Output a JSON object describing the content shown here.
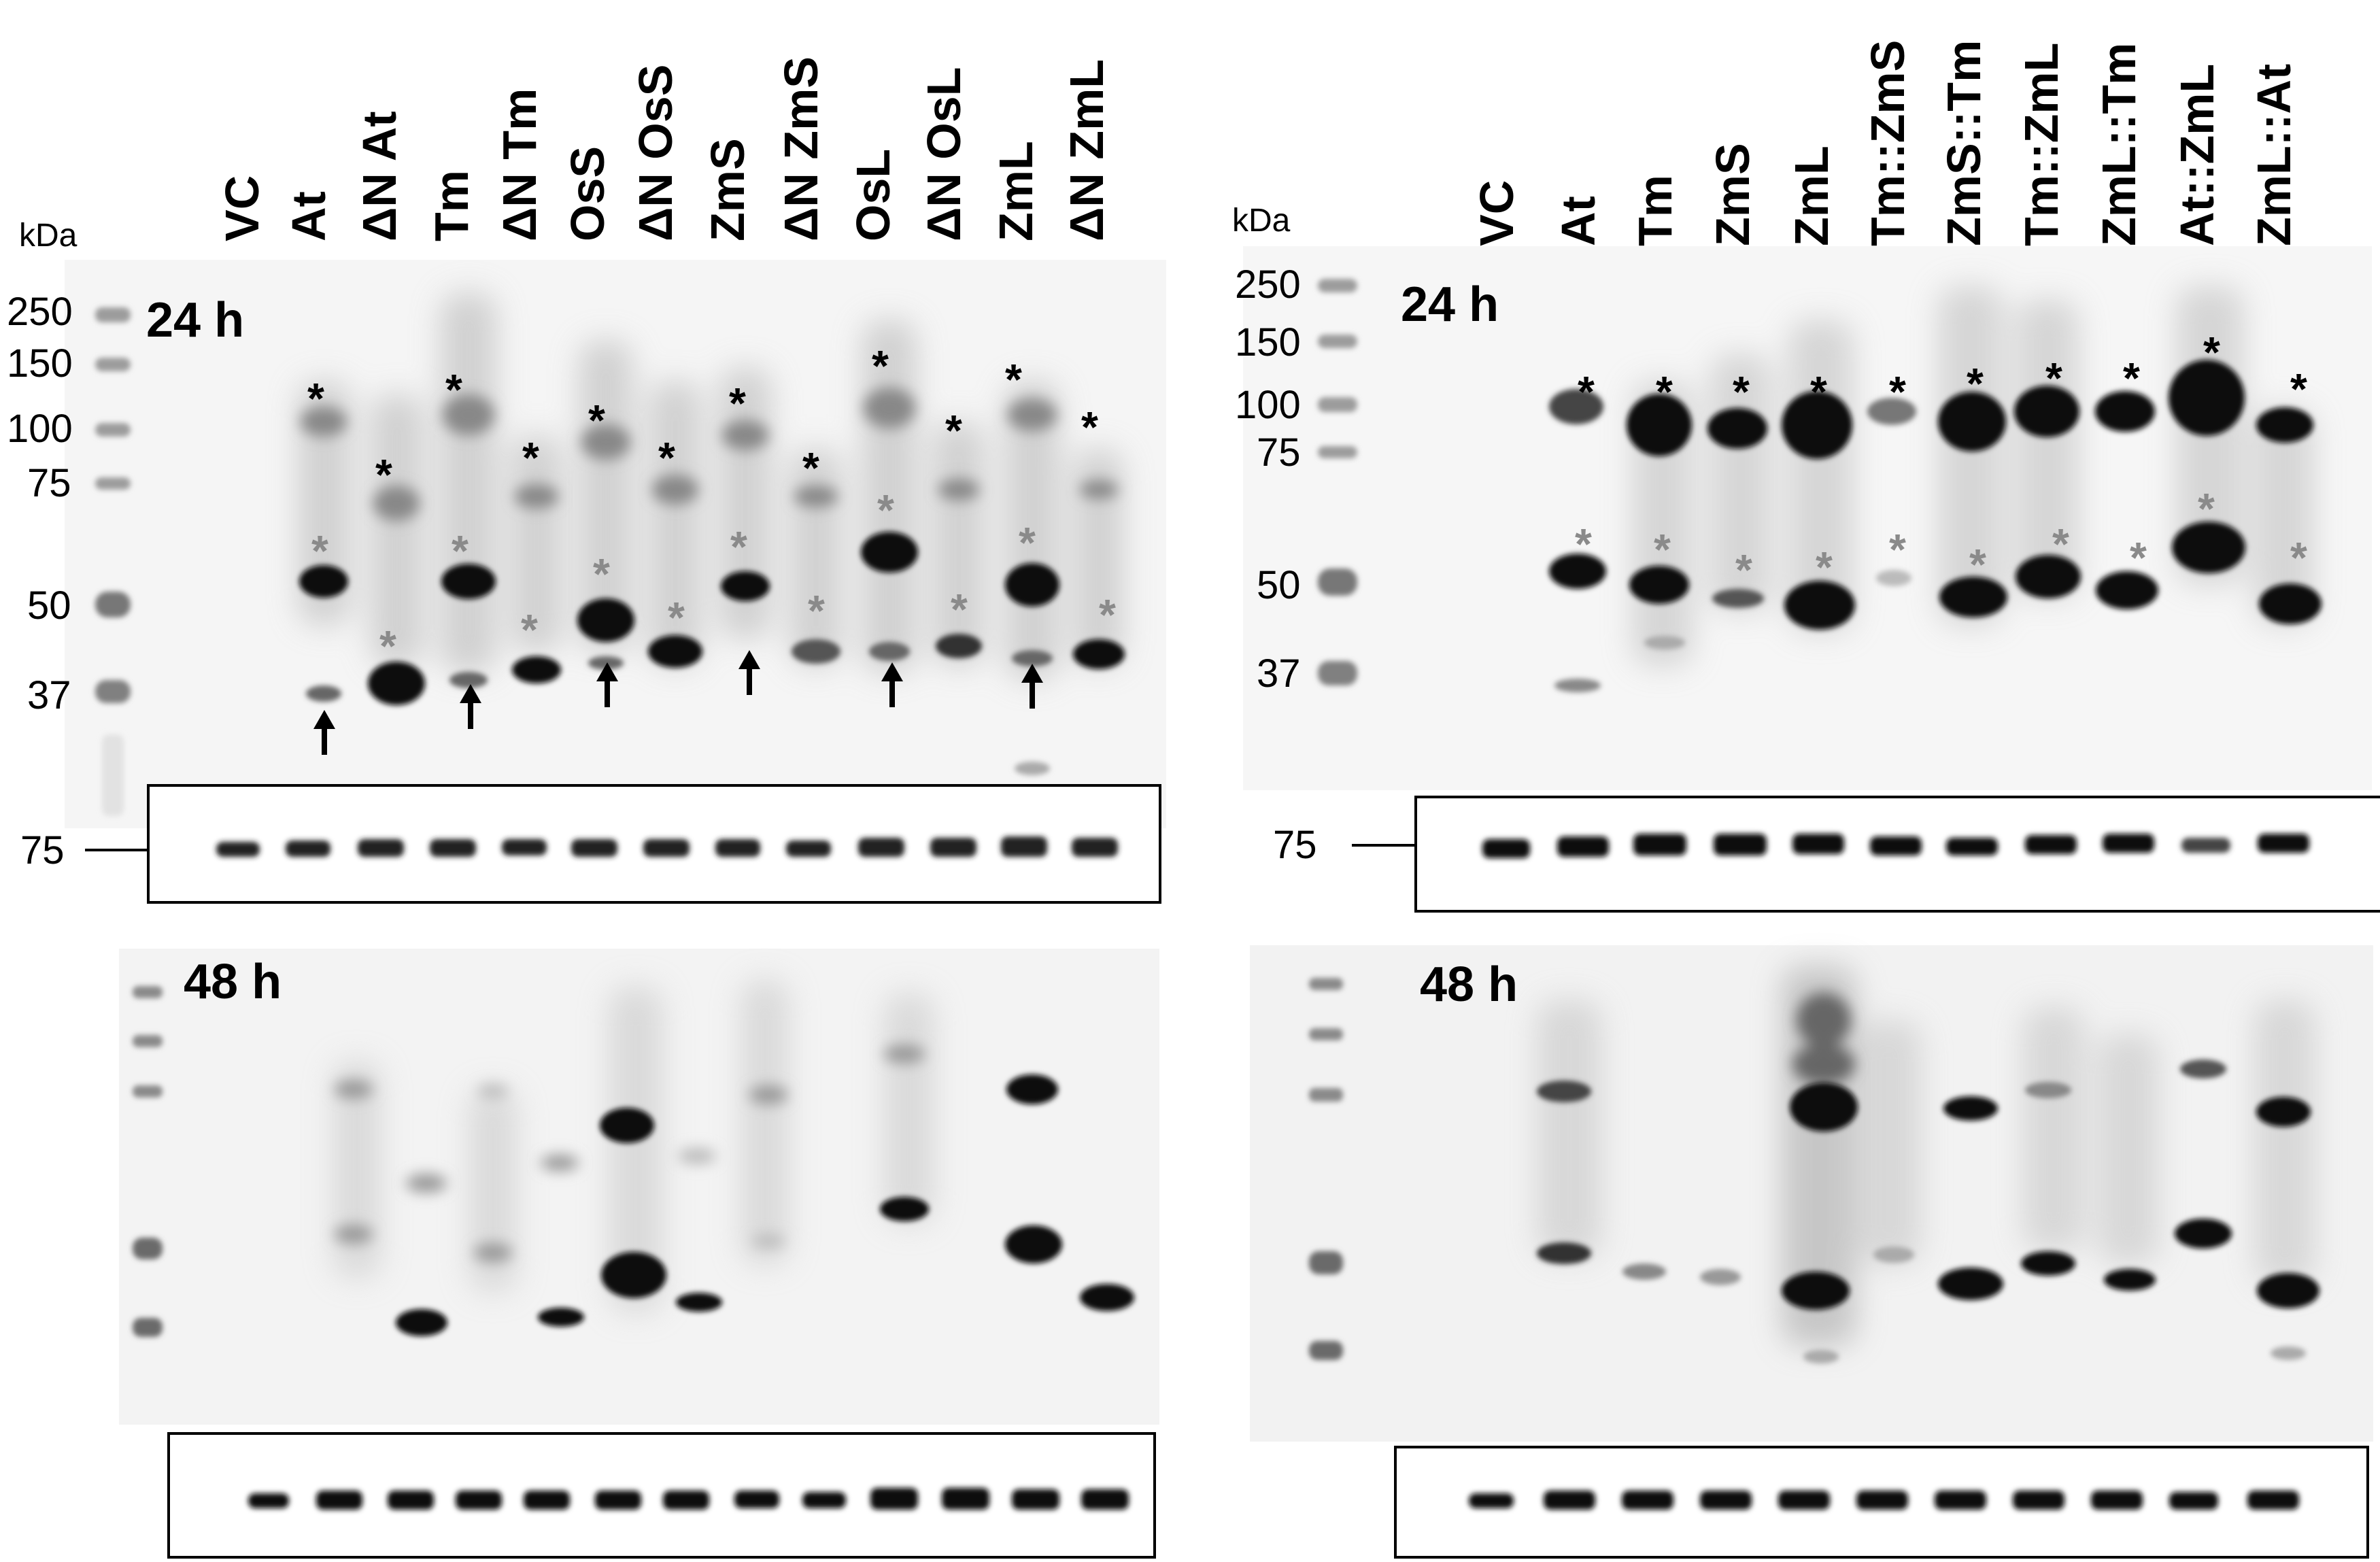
{
  "unit_label": "kDa",
  "panels": {
    "left": {
      "lanes": [
        "VC",
        "At",
        "ΔN At",
        "Tm",
        "ΔN Tm",
        "OsS",
        "ΔN OsS",
        "ZmS",
        "ΔN ZmS",
        "OsL",
        "ΔN OsL",
        "ZmL",
        "ΔN ZmL"
      ],
      "markers": [
        "250",
        "150",
        "100",
        "75",
        "50",
        "37"
      ],
      "time_24": "24 h",
      "time_48": "48 h",
      "loading_marker": "75"
    },
    "right": {
      "lanes": [
        "VC",
        "At",
        "Tm",
        "ZmS",
        "ZmL",
        "Tm::ZmS",
        "ZmS::Tm",
        "Tm::ZmL",
        "ZmL::Tm",
        "At::ZmL",
        "ZmL::At"
      ],
      "markers": [
        "250",
        "150",
        "100",
        "75",
        "50",
        "37"
      ],
      "time_24": "24 h",
      "time_48": "48 h",
      "loading_marker": "75"
    }
  },
  "annotations": {
    "full_length_marker": "*",
    "processed_marker": "*",
    "full_length_color": "#000000",
    "processed_color": "#8a8a8a",
    "arrow_icon": "up-arrow-icon"
  },
  "colors": {
    "band": "#111111",
    "blot_bg": "#f4f4f4",
    "frame": "#000000"
  }
}
